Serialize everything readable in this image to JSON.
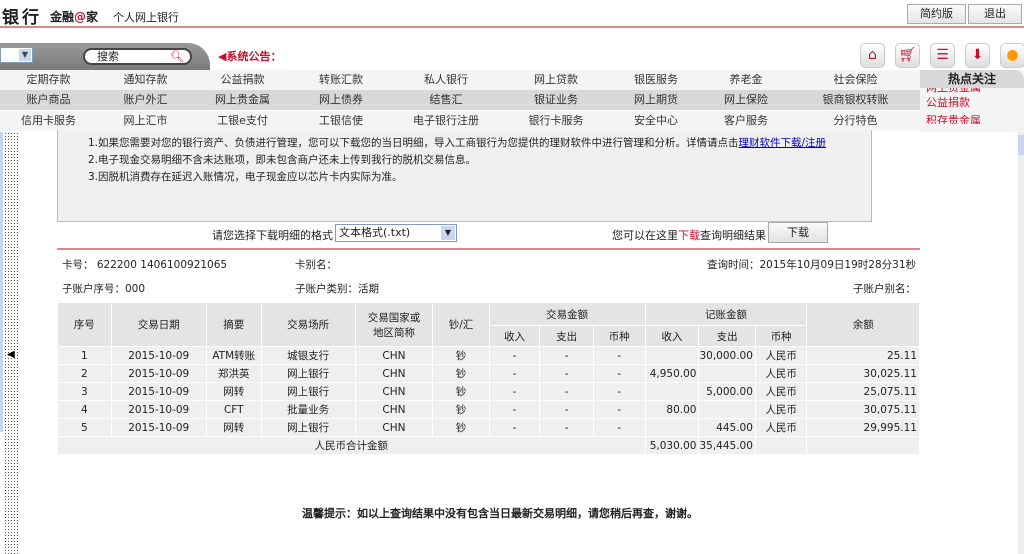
{
  "header": {
    "brand": "银行",
    "brand2_a": "金融",
    "brand2_at": "@",
    "brand2_b": "家",
    "subtitle": "个人网上银行",
    "simple_btn": "简约版",
    "logout_btn": "退出"
  },
  "toolbar": {
    "search_placeholder": "搜索",
    "notice_label": "系统公告：",
    "icons": [
      "home-icon",
      "cart-icon",
      "contact-card-icon",
      "download-inbox-icon",
      "headset-icon"
    ]
  },
  "menu": {
    "rows": [
      [
        "定期存款",
        "通知存款",
        "公益捐款",
        "转账汇款",
        "私人银行",
        "网上贷款",
        "银医服务",
        "养老金",
        "社会保险"
      ],
      [
        "账户商品",
        "账户外汇",
        "网上贵金属",
        "网上债券",
        "结售汇",
        "银证业务",
        "网上期货",
        "网上保险",
        "银商银权转账"
      ],
      [
        "信用卡服务",
        "网上汇市",
        "工银e支付",
        "工银信使",
        "电子银行注册",
        "银行卡服务",
        "安全中心",
        "客户服务",
        "分行特色"
      ]
    ]
  },
  "hot": {
    "title": "热点关注",
    "items": [
      "网上贵金属",
      "公益捐款",
      "积存贵金属"
    ]
  },
  "notes": {
    "n1": "1.如果您需要对您的银行资产、负债进行管理，您可以下载您的当日明细，导入工商银行为您提供的理财软件中进行管理和分析。详情请点击",
    "n1_link": "理财软件下载/注册",
    "n2": "2.电子现金交易明细不含未达账项，即未包含商户还未上传到我行的脱机交易信息。",
    "n3": "3.因脱机消费存在延迟入账情况，电子现金应以芯片卡内实际为准。"
  },
  "download": {
    "format_label": "请您选择下载明细的格式",
    "format_value": "文本格式(.txt)",
    "hint_a": "您可以在这里",
    "hint_link": "下载",
    "hint_b": "查询明细结果",
    "button": "下载"
  },
  "info": {
    "card_no": "卡号： 622200 1406100921065",
    "card_alias": "卡别名：",
    "query_time": "查询时间：2015年10月09日19时28分31秒",
    "sub_no": "子账户序号：000",
    "sub_type": "子账户类别：活期",
    "sub_alias": "子账户别名："
  },
  "table": {
    "headers": {
      "seq": "序号",
      "date": "交易日期",
      "summary": "摘要",
      "place": "交易场所",
      "country": "交易国家或地区简称",
      "cash": "钞/汇",
      "trade_amount": "交易金额",
      "book_amount": "记账金额",
      "income": "收入",
      "expense": "支出",
      "currency": "币种",
      "balance": "余额"
    },
    "rows": [
      [
        "1",
        "2015-10-09",
        "ATM转账",
        "城银支行",
        "CHN",
        "钞",
        "-",
        "-",
        "-",
        "",
        "30,000.00",
        "人民币",
        "25.11"
      ],
      [
        "2",
        "2015-10-09",
        "郑洪英",
        "网上银行",
        "CHN",
        "钞",
        "-",
        "-",
        "-",
        "4,950.00",
        "",
        "人民币",
        "30,025.11"
      ],
      [
        "3",
        "2015-10-09",
        "网转",
        "网上银行",
        "CHN",
        "钞",
        "-",
        "-",
        "-",
        "",
        "5,000.00",
        "人民币",
        "25,075.11"
      ],
      [
        "4",
        "2015-10-09",
        "CFT",
        "批量业务",
        "CHN",
        "钞",
        "-",
        "-",
        "-",
        "80.00",
        "",
        "人民币",
        "30,075.11"
      ],
      [
        "5",
        "2015-10-09",
        "网转",
        "网上银行",
        "CHN",
        "钞",
        "-",
        "-",
        "-",
        "",
        "445.00",
        "人民币",
        "29,995.11"
      ]
    ],
    "total_label": "人民币合计金额",
    "total_income": "5,030.00",
    "total_expense": "35,445.00"
  },
  "footer_tip": "温馨提示：如以上查询结果中没有包含当日最新交易明细，请您稍后再查，谢谢。"
}
